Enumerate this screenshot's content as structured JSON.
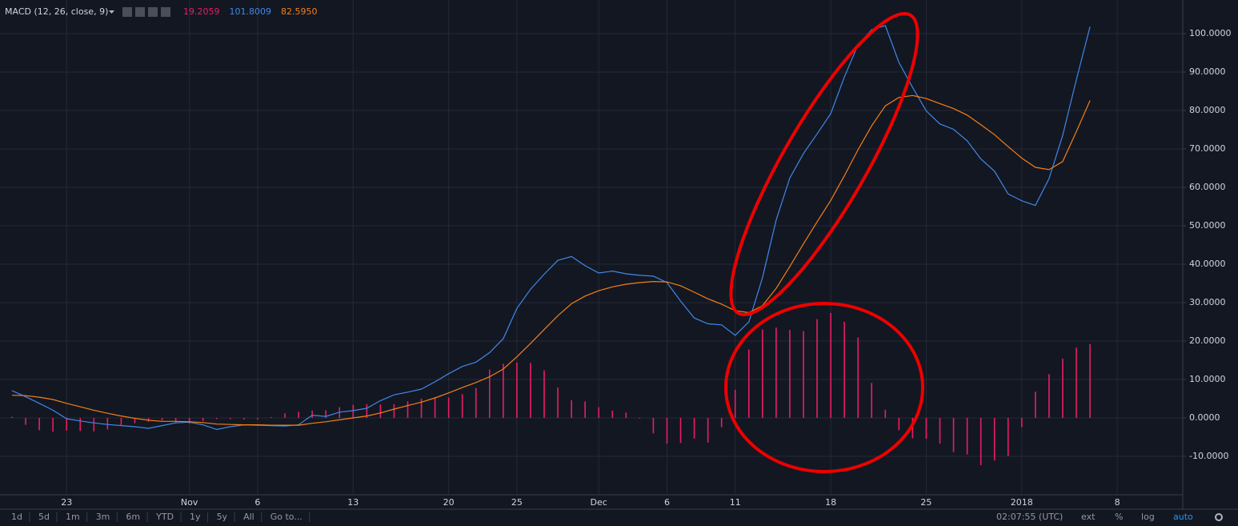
{
  "header": {
    "title": "MACD (12, 26, close, 9)",
    "values": [
      "19.2059",
      "101.8009",
      "82.5950"
    ]
  },
  "toolbar": {
    "ranges": [
      "1d",
      "5d",
      "1m",
      "3m",
      "6m",
      "YTD",
      "1y",
      "5y",
      "All",
      "Go to..."
    ],
    "time": "02:07:55 (UTC)",
    "options": [
      "ext",
      "%",
      "log",
      "auto"
    ]
  },
  "chart_data": {
    "type": "macd",
    "grid": true,
    "xlim": [
      -0.88,
      85.8
    ],
    "xticks": [
      {
        "value": 4,
        "label": "23"
      },
      {
        "value": 13,
        "label": "Nov"
      },
      {
        "value": 18,
        "label": "6"
      },
      {
        "value": 25,
        "label": "13"
      },
      {
        "value": 32,
        "label": "20"
      },
      {
        "value": 37,
        "label": "25"
      },
      {
        "value": 43,
        "label": "Dec"
      },
      {
        "value": 48,
        "label": "6"
      },
      {
        "value": 53,
        "label": "11"
      },
      {
        "value": 60,
        "label": "18"
      },
      {
        "value": 67,
        "label": "25"
      },
      {
        "value": 74,
        "label": "2018"
      },
      {
        "value": 81,
        "label": "8"
      }
    ],
    "ylim": [
      -20,
      108.75
    ],
    "yticks": [
      {
        "value": -10,
        "label": "-10.0000"
      },
      {
        "value": 0,
        "label": "0.0000"
      },
      {
        "value": 10,
        "label": "10.0000"
      },
      {
        "value": 20,
        "label": "20.0000"
      },
      {
        "value": 30,
        "label": "30.0000"
      },
      {
        "value": 40,
        "label": "40.0000"
      },
      {
        "value": 50,
        "label": "50.0000"
      },
      {
        "value": 60,
        "label": "60.0000"
      },
      {
        "value": 70,
        "label": "70.0000"
      },
      {
        "value": 80,
        "label": "80.0000"
      },
      {
        "value": 90,
        "label": "90.0000"
      },
      {
        "value": 100,
        "label": "100.0000"
      }
    ],
    "series": [
      {
        "type": "bar",
        "color": "#e91e63",
        "values": [
          0.3,
          -1.8,
          -3.2,
          -3.6,
          -3.3,
          -3.4,
          -3.5,
          -3.0,
          -2.0,
          -1.4,
          -1.0,
          -0.6,
          -1.2,
          -1.5,
          -0.8,
          -0.3,
          -0.3,
          -0.4,
          -0.4,
          0.2,
          1.2,
          1.6,
          1.9,
          2.0,
          2.8,
          3.4,
          3.6,
          3.5,
          3.6,
          4.3,
          5.0,
          5.4,
          5.3,
          6.2,
          7.8,
          12.6,
          14.1,
          14.4,
          14.3,
          12.4,
          7.9,
          4.6,
          4.3,
          2.8,
          1.9,
          1.4,
          -0.2,
          -4.0,
          -6.7,
          -6.5,
          -5.4,
          -6.4,
          -2.4,
          7.3,
          17.8,
          23.0,
          23.5,
          22.9,
          22.6,
          25.7,
          27.3,
          25.0,
          20.9,
          9.1,
          2.1,
          -3.2,
          -5.3,
          -5.4,
          -6.7,
          -8.9,
          -9.5,
          -12.3,
          -11.1,
          -9.9,
          -2.4,
          6.8,
          11.4,
          15.4,
          18.3,
          19.2059
        ]
      },
      {
        "type": "line",
        "color": "#3f88e8",
        "values": [
          7.1,
          5.5,
          3.8,
          2.0,
          -0.2,
          -0.8,
          -1.3,
          -1.7,
          -2.0,
          -2.3,
          -2.7,
          -2.0,
          -1.3,
          -1.1,
          -1.8,
          -3.0,
          -2.3,
          -1.8,
          -1.9,
          -2.0,
          -2.1,
          -1.8,
          0.7,
          0.4,
          1.5,
          1.9,
          2.5,
          4.5,
          6.0,
          6.7,
          7.5,
          9.4,
          11.5,
          13.4,
          14.5,
          17.0,
          20.6,
          28.5,
          33.5,
          37.4,
          41.0,
          42.0,
          39.6,
          37.7,
          38.2,
          37.5,
          37.1,
          36.9,
          35.2,
          30.4,
          26.0,
          24.5,
          24.2,
          21.5,
          25.0,
          36.5,
          51.5,
          62.4,
          68.8,
          73.9,
          79.2,
          88.7,
          97.1,
          101.0,
          102.1,
          92.5,
          86.0,
          79.9,
          76.5,
          75.1,
          72.1,
          67.4,
          64.2,
          58.3,
          56.5,
          55.3,
          62.3,
          73.5,
          88.0,
          101.8009
        ]
      },
      {
        "type": "line",
        "color": "#f57f17",
        "values": [
          5.9,
          5.8,
          5.4,
          4.8,
          3.8,
          2.9,
          2.0,
          1.2,
          0.5,
          -0.1,
          -0.6,
          -0.9,
          -0.9,
          -1.0,
          -1.2,
          -1.6,
          -1.7,
          -1.8,
          -1.8,
          -1.9,
          -1.9,
          -1.9,
          -1.4,
          -1.0,
          -0.5,
          0,
          0.5,
          1.3,
          2.3,
          3.2,
          4.1,
          5.2,
          6.5,
          7.9,
          9.2,
          10.7,
          12.7,
          15.9,
          19.4,
          23.0,
          26.6,
          29.7,
          31.7,
          33.1,
          34.1,
          34.8,
          35.2,
          35.5,
          35.4,
          34.4,
          32.7,
          31.0,
          29.6,
          27.9,
          27.4,
          29.2,
          33.7,
          39.4,
          45.3,
          51.0,
          56.6,
          63.0,
          69.8,
          76.0,
          81.2,
          83.4,
          83.9,
          83.1,
          81.8,
          80.5,
          78.8,
          76.3,
          73.7,
          70.6,
          67.6,
          65.2,
          64.6,
          66.7,
          74.5,
          82.595
        ]
      }
    ]
  }
}
